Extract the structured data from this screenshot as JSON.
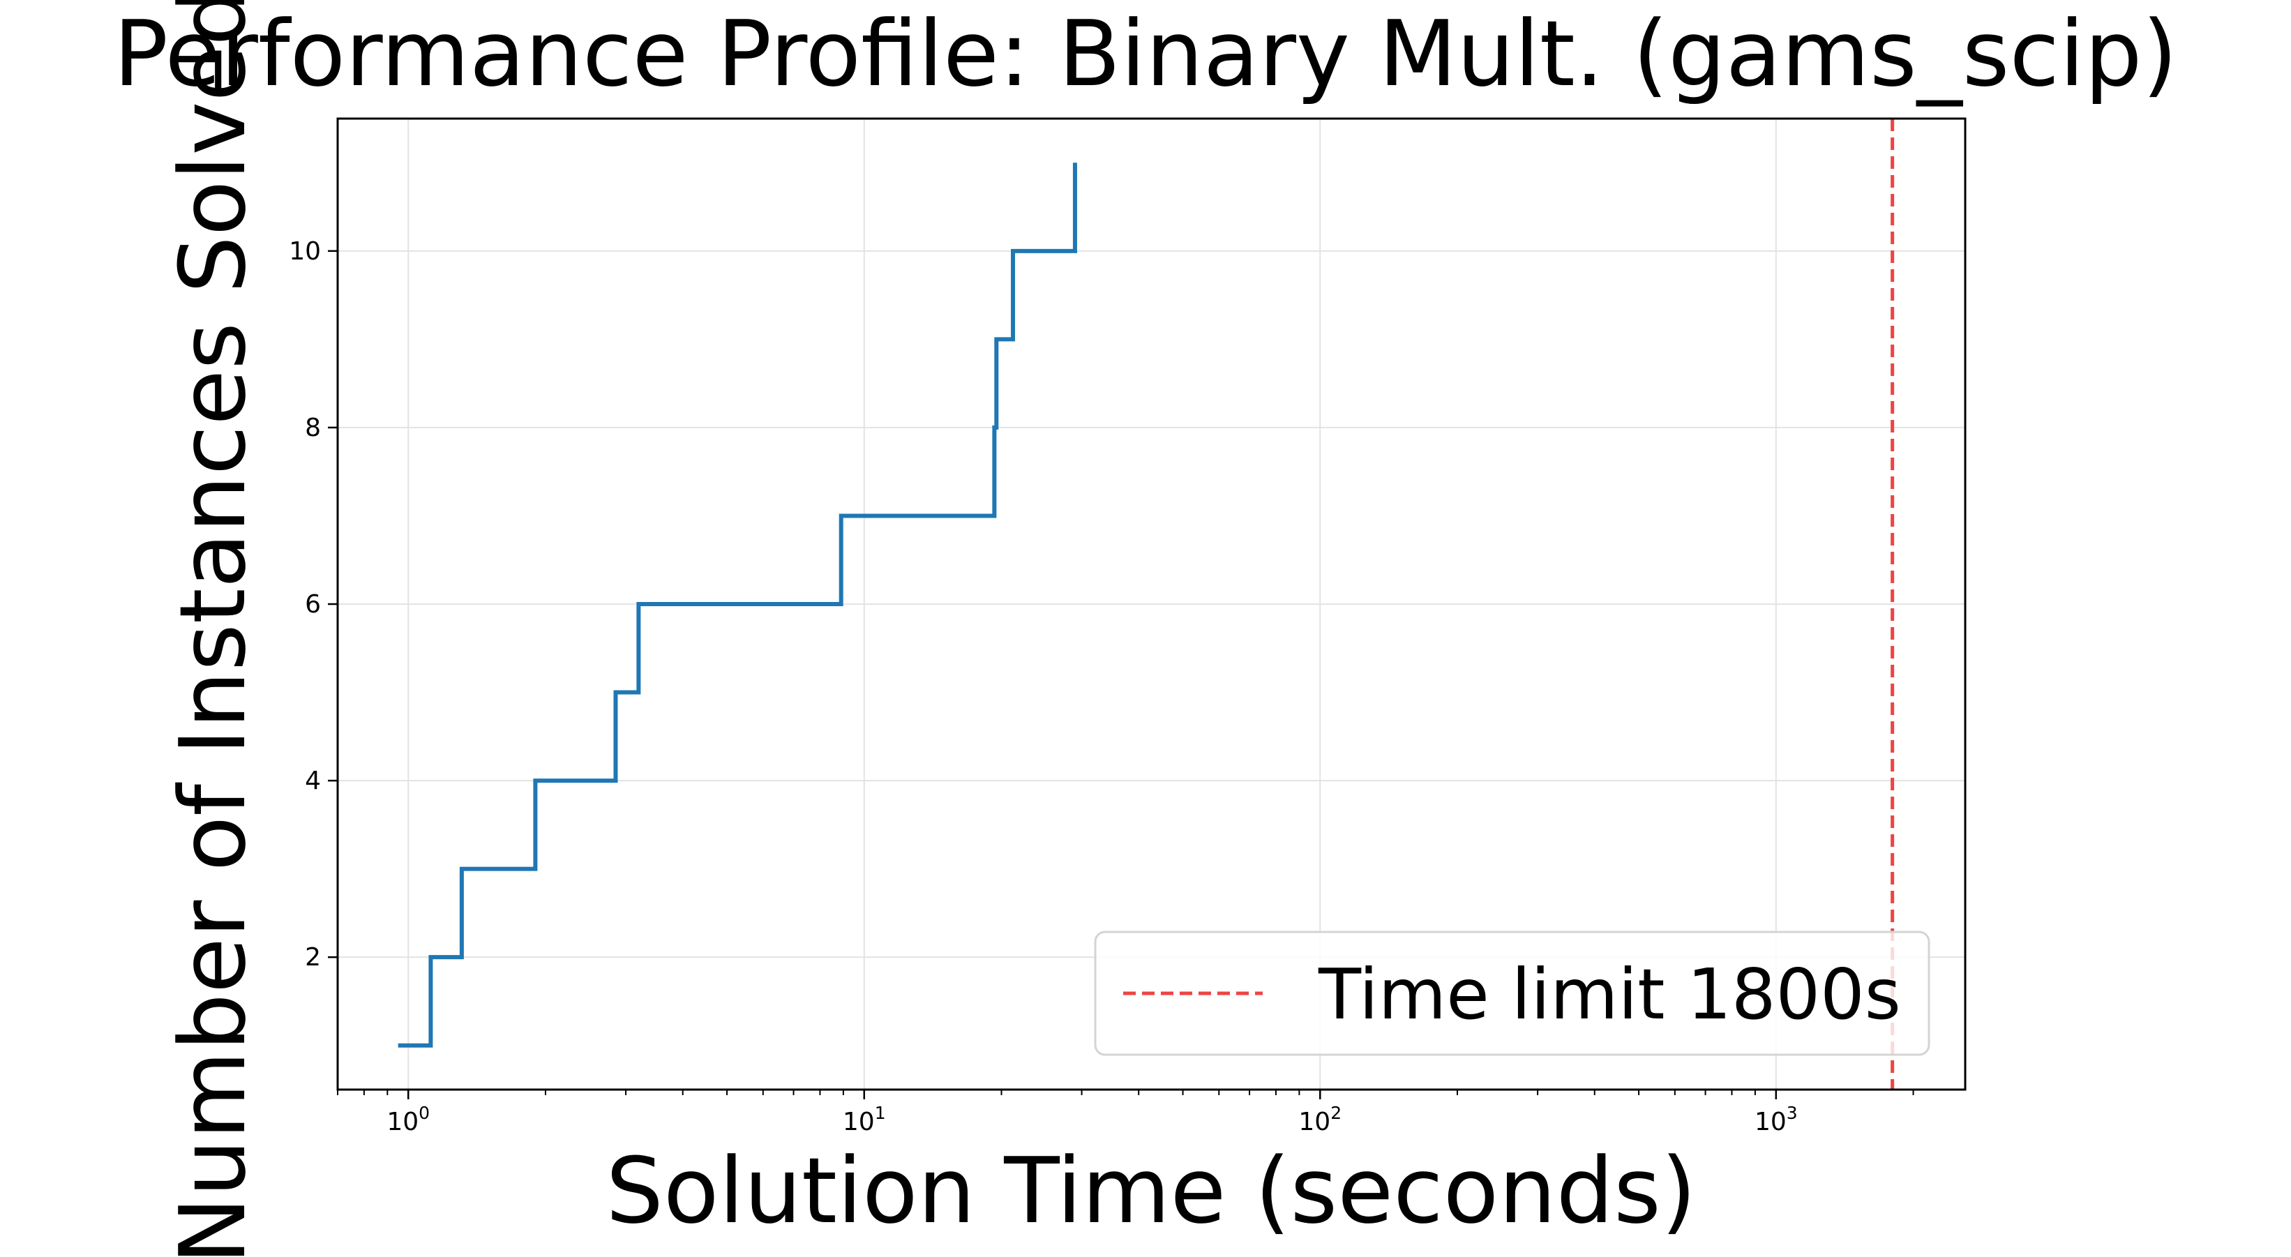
{
  "chart_data": {
    "type": "line",
    "title": "Performance Profile: Binary Mult. (gams_scip)",
    "xlabel": "Solution Time (seconds)",
    "ylabel": "Number of Instances Solved",
    "x_scale": "log",
    "xlim": [
      0.7,
      2600
    ],
    "ylim": [
      0.5,
      11.5
    ],
    "grid": true,
    "legend_position": "lower-right",
    "x_ticks": [
      {
        "value": 1,
        "base": "10",
        "exp": "0"
      },
      {
        "value": 10,
        "base": "10",
        "exp": "1"
      },
      {
        "value": 100,
        "base": "10",
        "exp": "2"
      },
      {
        "value": 1000,
        "base": "10",
        "exp": "3"
      }
    ],
    "y_ticks": [
      {
        "value": 2,
        "label": "2"
      },
      {
        "value": 4,
        "label": "4"
      },
      {
        "value": 6,
        "label": "6"
      },
      {
        "value": 8,
        "label": "8"
      },
      {
        "value": 10,
        "label": "10"
      }
    ],
    "series": [
      {
        "color": "#1f77b4",
        "step": "post",
        "points": [
          {
            "x": 0.95,
            "y": 1
          },
          {
            "x": 1.12,
            "y": 2
          },
          {
            "x": 1.31,
            "y": 3
          },
          {
            "x": 1.9,
            "y": 4
          },
          {
            "x": 2.85,
            "y": 5
          },
          {
            "x": 3.2,
            "y": 6
          },
          {
            "x": 8.9,
            "y": 7
          },
          {
            "x": 19.3,
            "y": 8
          },
          {
            "x": 19.5,
            "y": 9
          },
          {
            "x": 21.2,
            "y": 10
          },
          {
            "x": 29.0,
            "y": 11
          }
        ]
      }
    ],
    "reference_lines": [
      {
        "orientation": "vertical",
        "x": 1800,
        "color": "#ee4444",
        "style": "dashed",
        "label": "Time limit 1800s"
      }
    ]
  }
}
